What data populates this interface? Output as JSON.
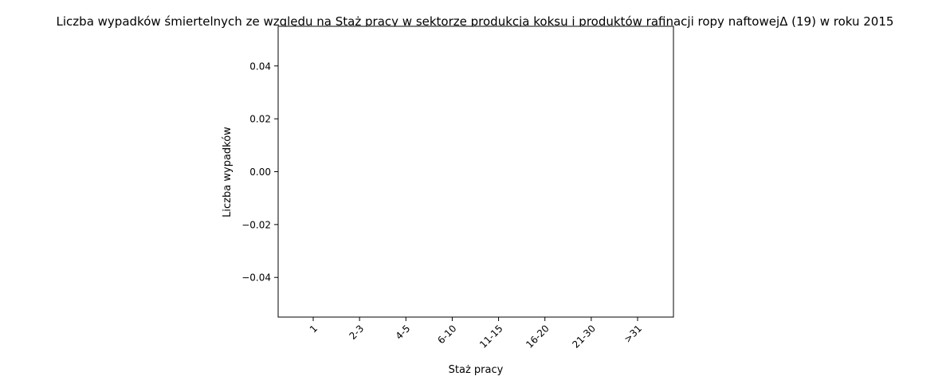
{
  "chart_data": {
    "type": "bar",
    "title": "Liczba wypadków śmiertelnych ze względu na Staż pracy w sektorze produkcja koksu i produktów rafinacji ropy naftowejΔ (19) w roku 2015",
    "xlabel": "Staż pracy",
    "ylabel": "Liczba wypadków",
    "categories": [
      "1",
      "2-3",
      "4-5",
      "6-10",
      "11-15",
      "16-20",
      "21-30",
      ">31"
    ],
    "values": [
      0,
      0,
      0,
      0,
      0,
      0,
      0,
      0
    ],
    "ylim": [
      -0.055,
      0.055
    ],
    "yticks": [
      0.04,
      0.02,
      0.0,
      -0.02,
      -0.04
    ],
    "ytick_labels": [
      "0.04",
      "0.02",
      "0.00",
      "−0.02",
      "−0.04"
    ],
    "grid": false,
    "bar_color": "#1f77b4"
  }
}
